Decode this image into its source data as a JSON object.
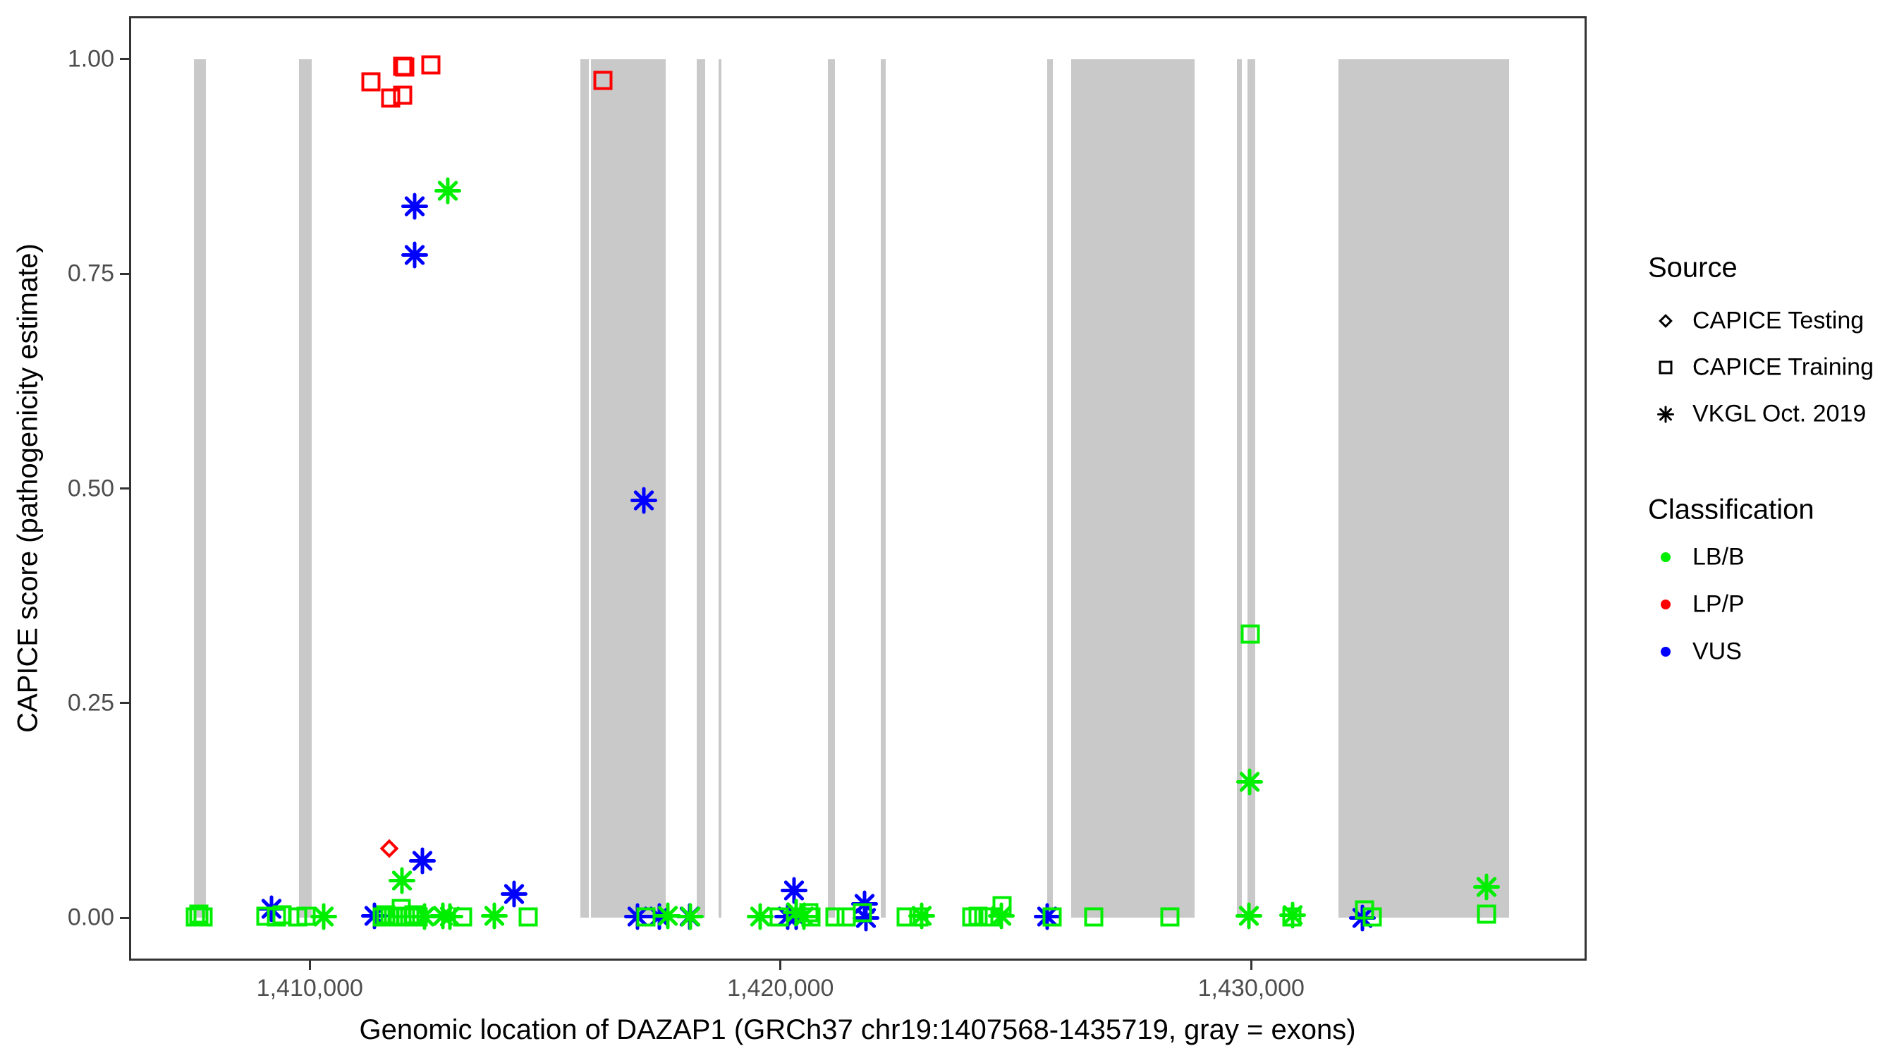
{
  "chart_data": {
    "type": "scatter",
    "xlabel": "Genomic location of DAZAP1 (GRCh37 chr19:1407568-1435719, gray = exons)",
    "ylabel": "CAPICE score (pathogenicity estimate)",
    "x_range": [
      1406160,
      1437127
    ],
    "y_range": [
      -0.05,
      1.05
    ],
    "grid": "off",
    "exon_color": "#c9c9c9",
    "x_ticks": [
      {
        "value": 1410000,
        "label": "1,410,000"
      },
      {
        "value": 1420000,
        "label": "1,420,000"
      },
      {
        "value": 1430000,
        "label": "1,430,000"
      }
    ],
    "y_ticks": [
      {
        "value": 0.0,
        "label": "0.00"
      },
      {
        "value": 0.25,
        "label": "0.25"
      },
      {
        "value": 0.5,
        "label": "0.50"
      },
      {
        "value": 0.75,
        "label": "0.75"
      },
      {
        "value": 1.0,
        "label": "1.00"
      }
    ],
    "exons": [
      [
        1407543,
        1407798
      ],
      [
        1409775,
        1410045
      ],
      [
        1415753,
        1415933
      ],
      [
        1415978,
        1417566
      ],
      [
        1418225,
        1418404
      ],
      [
        1418689,
        1418749
      ],
      [
        1421011,
        1421161
      ],
      [
        1422135,
        1422240
      ],
      [
        1425671,
        1425791
      ],
      [
        1426180,
        1428801
      ],
      [
        1429700,
        1429800
      ],
      [
        1429925,
        1430090
      ],
      [
        1431850,
        1435480
      ]
    ],
    "legend": {
      "source": {
        "title": "Source",
        "items": [
          {
            "shape": "diamond",
            "label": "CAPICE Testing"
          },
          {
            "shape": "square",
            "label": "CAPICE Training"
          },
          {
            "shape": "asterisk",
            "label": "VKGL Oct. 2019"
          }
        ]
      },
      "classification": {
        "title": "Classification",
        "items": [
          {
            "label": "LB/B",
            "color": "#00ee00"
          },
          {
            "label": "LP/P",
            "color": "#ff0000"
          },
          {
            "label": "VUS",
            "color": "#0000ff"
          }
        ]
      }
    },
    "classification_colors": {
      "LB/B": "#00ee00",
      "LP/P": "#ff0000",
      "VUS": "#0000ff"
    },
    "source_shapes": {
      "testing": "diamond",
      "training": "square",
      "vkgl": "asterisk"
    },
    "points": [
      {
        "x": 1411293,
        "y": 0.974,
        "src": "training",
        "cls": "LP/P"
      },
      {
        "x": 1411723,
        "y": 0.955,
        "src": "training",
        "cls": "LP/P"
      },
      {
        "x": 1411978,
        "y": 0.958,
        "src": "training",
        "cls": "LP/P"
      },
      {
        "x": 1411973,
        "y": 0.992,
        "src": "training",
        "cls": "LP/P"
      },
      {
        "x": 1412022,
        "y": 0.991,
        "src": "training",
        "cls": "LP/P"
      },
      {
        "x": 1412572,
        "y": 0.993,
        "src": "training",
        "cls": "LP/P"
      },
      {
        "x": 1416232,
        "y": 0.975,
        "src": "training",
        "cls": "LP/P"
      },
      {
        "x": 1411693,
        "y": 0.081,
        "src": "testing",
        "cls": "LP/P"
      },
      {
        "x": 1412222,
        "y": 0.829,
        "src": "vkgl",
        "cls": "VUS"
      },
      {
        "x": 1412222,
        "y": 0.772,
        "src": "vkgl",
        "cls": "VUS"
      },
      {
        "x": 1412926,
        "y": 0.847,
        "src": "vkgl",
        "cls": "LB/B"
      },
      {
        "x": 1417090,
        "y": 0.486,
        "src": "vkgl",
        "cls": "VUS"
      },
      {
        "x": 1412392,
        "y": 0.066,
        "src": "vkgl",
        "cls": "VUS"
      },
      {
        "x": 1414340,
        "y": 0.028,
        "src": "vkgl",
        "cls": "VUS"
      },
      {
        "x": 1411958,
        "y": 0.043,
        "src": "vkgl",
        "cls": "LB/B"
      },
      {
        "x": 1409191,
        "y": 0.01,
        "src": "vkgl",
        "cls": "VUS"
      },
      {
        "x": 1411368,
        "y": 0.002,
        "src": "vkgl",
        "cls": "VUS"
      },
      {
        "x": 1416962,
        "y": 0.001,
        "src": "vkgl",
        "cls": "VUS"
      },
      {
        "x": 1417427,
        "y": 0.001,
        "src": "vkgl",
        "cls": "VUS"
      },
      {
        "x": 1418075,
        "y": 0.001,
        "src": "vkgl",
        "cls": "VUS"
      },
      {
        "x": 1420160,
        "y": 0.001,
        "src": "vkgl",
        "cls": "VUS"
      },
      {
        "x": 1420292,
        "y": 0.032,
        "src": "vkgl",
        "cls": "VUS"
      },
      {
        "x": 1420330,
        "y": 0.001,
        "src": "vkgl",
        "cls": "VUS"
      },
      {
        "x": 1421785,
        "y": 0.016,
        "src": "vkgl",
        "cls": "VUS"
      },
      {
        "x": 1421820,
        "y": 0.0,
        "src": "vkgl",
        "cls": "VUS"
      },
      {
        "x": 1425666,
        "y": 0.001,
        "src": "vkgl",
        "cls": "VUS"
      },
      {
        "x": 1432370,
        "y": 0.0,
        "src": "vkgl",
        "cls": "VUS"
      },
      {
        "x": 1407570,
        "y": 0.001,
        "src": "training",
        "cls": "LB/B"
      },
      {
        "x": 1407650,
        "y": 0.004,
        "src": "training",
        "cls": "LB/B"
      },
      {
        "x": 1407730,
        "y": 0.001,
        "src": "training",
        "cls": "LB/B"
      },
      {
        "x": 1409071,
        "y": 0.002,
        "src": "training",
        "cls": "LB/B"
      },
      {
        "x": 1409296,
        "y": 0.001,
        "src": "training",
        "cls": "LB/B"
      },
      {
        "x": 1409416,
        "y": 0.003,
        "src": "training",
        "cls": "LB/B"
      },
      {
        "x": 1409745,
        "y": 0.001,
        "src": "training",
        "cls": "LB/B"
      },
      {
        "x": 1409925,
        "y": 0.002,
        "src": "training",
        "cls": "LB/B"
      },
      {
        "x": 1410300,
        "y": 0.001,
        "src": "vkgl",
        "cls": "LB/B"
      },
      {
        "x": 1411543,
        "y": 0.001,
        "src": "training",
        "cls": "LB/B"
      },
      {
        "x": 1411620,
        "y": 0.003,
        "src": "training",
        "cls": "LB/B"
      },
      {
        "x": 1411700,
        "y": 0.001,
        "src": "training",
        "cls": "LB/B"
      },
      {
        "x": 1411780,
        "y": 0.002,
        "src": "training",
        "cls": "LB/B"
      },
      {
        "x": 1411860,
        "y": 0.001,
        "src": "training",
        "cls": "LB/B"
      },
      {
        "x": 1411940,
        "y": 0.011,
        "src": "training",
        "cls": "LB/B"
      },
      {
        "x": 1412040,
        "y": 0.002,
        "src": "training",
        "cls": "LB/B"
      },
      {
        "x": 1412120,
        "y": 0.001,
        "src": "training",
        "cls": "LB/B"
      },
      {
        "x": 1412210,
        "y": 0.003,
        "src": "training",
        "cls": "LB/B"
      },
      {
        "x": 1412300,
        "y": 0.001,
        "src": "training",
        "cls": "LB/B"
      },
      {
        "x": 1412440,
        "y": 0.001,
        "src": "vkgl",
        "cls": "LB/B"
      },
      {
        "x": 1412820,
        "y": 0.002,
        "src": "vkgl",
        "cls": "LB/B"
      },
      {
        "x": 1412970,
        "y": 0.001,
        "src": "vkgl",
        "cls": "LB/B"
      },
      {
        "x": 1413241,
        "y": 0.001,
        "src": "training",
        "cls": "LB/B"
      },
      {
        "x": 1413915,
        "y": 0.002,
        "src": "vkgl",
        "cls": "LB/B"
      },
      {
        "x": 1414640,
        "y": 0.001,
        "src": "training",
        "cls": "LB/B"
      },
      {
        "x": 1417137,
        "y": 0.001,
        "src": "training",
        "cls": "LB/B"
      },
      {
        "x": 1417611,
        "y": 0.002,
        "src": "vkgl",
        "cls": "LB/B"
      },
      {
        "x": 1418090,
        "y": 0.001,
        "src": "vkgl",
        "cls": "LB/B"
      },
      {
        "x": 1419573,
        "y": 0.001,
        "src": "vkgl",
        "cls": "LB/B"
      },
      {
        "x": 1419978,
        "y": 0.001,
        "src": "training",
        "cls": "LB/B"
      },
      {
        "x": 1420340,
        "y": 0.006,
        "src": "vkgl",
        "cls": "LB/B"
      },
      {
        "x": 1420490,
        "y": 0.001,
        "src": "vkgl",
        "cls": "LB/B"
      },
      {
        "x": 1420607,
        "y": 0.006,
        "src": "training",
        "cls": "LB/B"
      },
      {
        "x": 1420650,
        "y": 0.001,
        "src": "training",
        "cls": "LB/B"
      },
      {
        "x": 1421160,
        "y": 0.001,
        "src": "training",
        "cls": "LB/B"
      },
      {
        "x": 1421390,
        "y": 0.001,
        "src": "training",
        "cls": "LB/B"
      },
      {
        "x": 1421745,
        "y": 0.006,
        "src": "training",
        "cls": "LB/B"
      },
      {
        "x": 1422664,
        "y": 0.001,
        "src": "training",
        "cls": "LB/B"
      },
      {
        "x": 1422940,
        "y": 0.001,
        "src": "training",
        "cls": "LB/B"
      },
      {
        "x": 1423004,
        "y": 0.002,
        "src": "vkgl",
        "cls": "LB/B"
      },
      {
        "x": 1424060,
        "y": 0.001,
        "src": "training",
        "cls": "LB/B"
      },
      {
        "x": 1424200,
        "y": 0.002,
        "src": "training",
        "cls": "LB/B"
      },
      {
        "x": 1424320,
        "y": 0.001,
        "src": "training",
        "cls": "LB/B"
      },
      {
        "x": 1424450,
        "y": 0.001,
        "src": "training",
        "cls": "LB/B"
      },
      {
        "x": 1424705,
        "y": 0.014,
        "src": "training",
        "cls": "LB/B"
      },
      {
        "x": 1424695,
        "y": 0.002,
        "src": "vkgl",
        "cls": "LB/B"
      },
      {
        "x": 1425770,
        "y": 0.001,
        "src": "training",
        "cls": "LB/B"
      },
      {
        "x": 1426650,
        "y": 0.001,
        "src": "training",
        "cls": "LB/B"
      },
      {
        "x": 1428270,
        "y": 0.001,
        "src": "training",
        "cls": "LB/B"
      },
      {
        "x": 1429980,
        "y": 0.33,
        "src": "training",
        "cls": "LB/B"
      },
      {
        "x": 1429965,
        "y": 0.158,
        "src": "vkgl",
        "cls": "LB/B"
      },
      {
        "x": 1429955,
        "y": 0.002,
        "src": "vkgl",
        "cls": "LB/B"
      },
      {
        "x": 1430863,
        "y": 0.001,
        "src": "training",
        "cls": "LB/B"
      },
      {
        "x": 1430877,
        "y": 0.003,
        "src": "vkgl",
        "cls": "LB/B"
      },
      {
        "x": 1432402,
        "y": 0.009,
        "src": "training",
        "cls": "LB/B"
      },
      {
        "x": 1432577,
        "y": 0.001,
        "src": "training",
        "cls": "LB/B"
      },
      {
        "x": 1435000,
        "y": 0.036,
        "src": "vkgl",
        "cls": "LB/B"
      },
      {
        "x": 1435000,
        "y": 0.004,
        "src": "training",
        "cls": "LB/B"
      }
    ]
  }
}
